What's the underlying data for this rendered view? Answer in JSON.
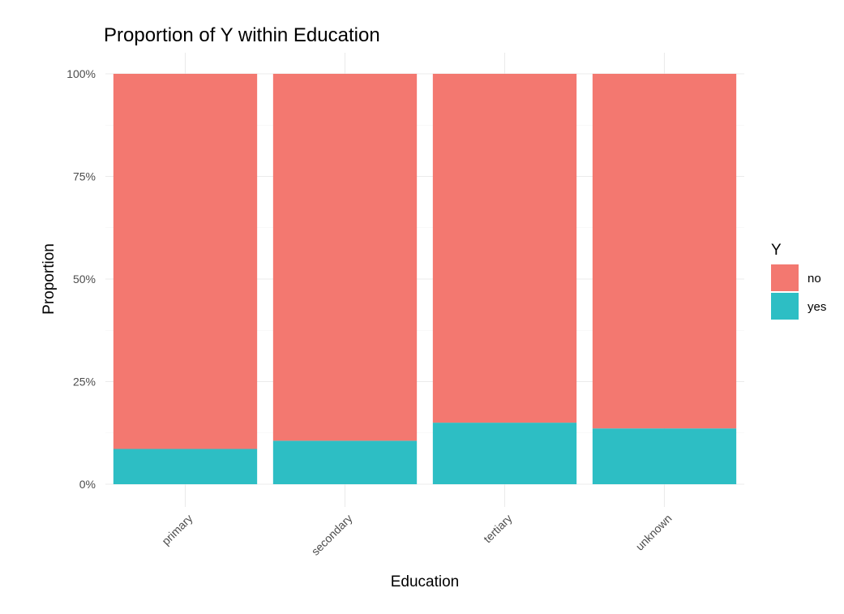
{
  "chart_data": {
    "type": "bar",
    "stacked": true,
    "title": "Proportion of Y within Education",
    "xlabel": "Education",
    "ylabel": "Proportion",
    "categories": [
      "primary",
      "secondary",
      "tertiary",
      "unknown"
    ],
    "ylim": [
      0,
      1
    ],
    "yticks": [
      0,
      0.25,
      0.5,
      0.75,
      1.0
    ],
    "ytick_labels": [
      "0%",
      "25%",
      "50%",
      "75%",
      "100%"
    ],
    "grid": true,
    "legend": {
      "title": "Y",
      "position": "right"
    },
    "series": [
      {
        "name": "no",
        "color": "#F37870",
        "values": [
          0.914,
          0.894,
          0.85,
          0.864
        ]
      },
      {
        "name": "yes",
        "color": "#2DBEC4",
        "values": [
          0.086,
          0.106,
          0.15,
          0.136
        ]
      }
    ]
  }
}
